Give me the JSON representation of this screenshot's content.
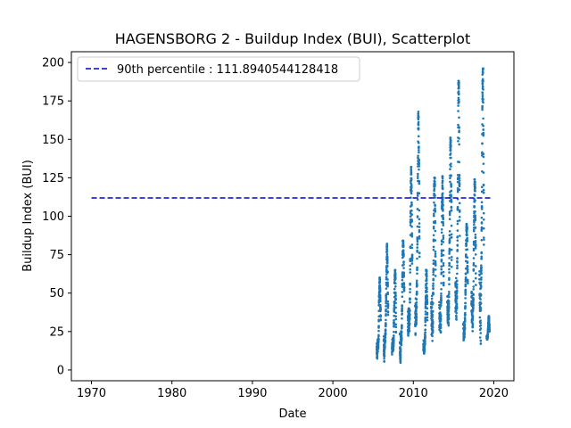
{
  "chart_data": {
    "type": "scatter",
    "title": "HAGENSBORG 2 - Buildup Index (BUI), Scatterplot",
    "xlabel": "Date",
    "ylabel": "Buildup Index (BUI)",
    "xlim": [
      1967.5,
      2022.5
    ],
    "ylim": [
      -7,
      207
    ],
    "xticks": [
      1970,
      1980,
      1990,
      2000,
      2010,
      2020
    ],
    "yticks": [
      0,
      25,
      50,
      75,
      100,
      125,
      150,
      175,
      200
    ],
    "grid": false,
    "legend_position": "top-left",
    "colors": {
      "scatter": "#1f77b4",
      "percentile": "#0000cd"
    },
    "percentile_line": {
      "label": "90th percentile : 111.8940544128418",
      "value": 111.8940544128418,
      "x_range": [
        1970,
        2019.6
      ]
    },
    "seasons": [
      {
        "year": 2005.7,
        "width": 0.5,
        "min": 2,
        "max": 60
      },
      {
        "year": 2006.6,
        "width": 0.55,
        "min": 0,
        "max": 82
      },
      {
        "year": 2007.6,
        "width": 0.5,
        "min": 2,
        "max": 65
      },
      {
        "year": 2008.6,
        "width": 0.55,
        "min": 0,
        "max": 84
      },
      {
        "year": 2009.6,
        "width": 0.55,
        "min": 5,
        "max": 132
      },
      {
        "year": 2010.5,
        "width": 0.55,
        "min": 4,
        "max": 168
      },
      {
        "year": 2011.5,
        "width": 0.5,
        "min": 3,
        "max": 65
      },
      {
        "year": 2012.5,
        "width": 0.55,
        "min": 8,
        "max": 125
      },
      {
        "year": 2013.5,
        "width": 0.55,
        "min": 10,
        "max": 126
      },
      {
        "year": 2014.5,
        "width": 0.55,
        "min": 12,
        "max": 151
      },
      {
        "year": 2015.5,
        "width": 0.55,
        "min": 8,
        "max": 188
      },
      {
        "year": 2016.5,
        "width": 0.55,
        "min": 12,
        "max": 95
      },
      {
        "year": 2017.5,
        "width": 0.55,
        "min": 15,
        "max": 124
      },
      {
        "year": 2018.5,
        "width": 0.55,
        "min": 5,
        "max": 196
      },
      {
        "year": 2019.3,
        "width": 0.35,
        "min": 18,
        "max": 35
      }
    ]
  }
}
